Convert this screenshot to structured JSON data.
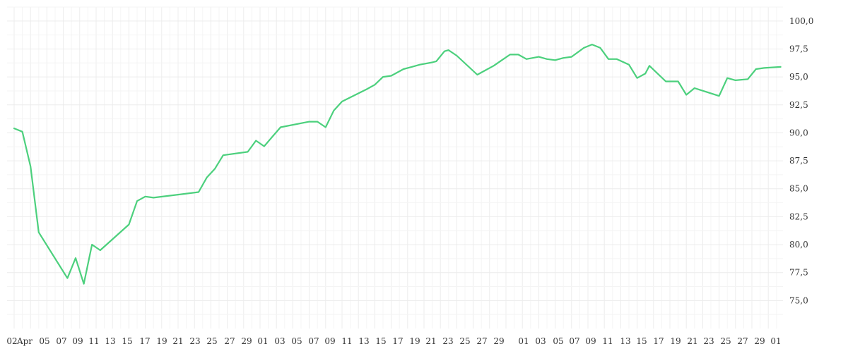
{
  "chart_data": {
    "type": "line",
    "y_axis_position": "right",
    "ylim": [
      72.5,
      101.25
    ],
    "y_ticks": [
      "100,0",
      "97,5",
      "95,0",
      "92,5",
      "90,0",
      "87,5",
      "85,0",
      "82,5",
      "80,0",
      "77,5",
      "75,0"
    ],
    "y_tick_values": [
      100,
      97.5,
      95,
      92.5,
      90,
      87.5,
      85,
      82.5,
      80,
      77.5,
      75
    ],
    "x_ticks": [
      "02",
      "Apr",
      "05",
      "07",
      "09",
      "11",
      "13",
      "15",
      "17",
      "19",
      "21",
      "23",
      "25",
      "27",
      "29",
      "01",
      "03",
      "05",
      "07",
      "09",
      "11",
      "13",
      "15",
      "17",
      "19",
      "21",
      "23",
      "25",
      "27",
      "29",
      "01",
      "03",
      "05",
      "07",
      "09",
      "11",
      "13",
      "15",
      "17",
      "19",
      "21",
      "23",
      "25",
      "27",
      "29",
      "01"
    ],
    "grid": true,
    "colors": {
      "series": "#4cd07d",
      "grid": "#ececec",
      "text": "#333333"
    },
    "series": [
      {
        "x": [
          0,
          1,
          2,
          3,
          6.5,
          7.5,
          8.5,
          9.5,
          10.5,
          14,
          15,
          16,
          17,
          22.5,
          23.5,
          24.5,
          25.5,
          28.5,
          29.5,
          30.5,
          32.5,
          36,
          37,
          38,
          39,
          40,
          43,
          44,
          45,
          46,
          47.5,
          48.5,
          49.5,
          51,
          51.5,
          52.5,
          53,
          54,
          56.5,
          57.5,
          58.5,
          59.5,
          60.5,
          61.5,
          62.5,
          64,
          65,
          66,
          67,
          68,
          69.5,
          70.5,
          71.5,
          72.5,
          73.5,
          75,
          76,
          77,
          77.5,
          79.5,
          81,
          82,
          83,
          86,
          87,
          88,
          89.5,
          90.5,
          91.5,
          93.5
        ],
        "values": [
          90.4,
          90.1,
          87.0,
          81.1,
          77.0,
          78.8,
          76.5,
          80.0,
          79.5,
          81.8,
          83.9,
          84.3,
          84.2,
          84.7,
          86.0,
          86.8,
          88.0,
          88.3,
          89.3,
          88.8,
          90.5,
          91.0,
          91.0,
          90.5,
          92.0,
          92.8,
          93.9,
          94.3,
          95.0,
          95.1,
          95.7,
          95.9,
          96.1,
          96.3,
          96.4,
          97.3,
          97.4,
          96.9,
          95.2,
          95.6,
          96.0,
          96.5,
          97.0,
          97.0,
          96.6,
          96.8,
          96.6,
          96.5,
          96.7,
          96.8,
          97.6,
          97.9,
          97.6,
          96.6,
          96.6,
          96.1,
          94.9,
          95.3,
          96.0,
          94.6,
          94.6,
          93.4,
          94.0,
          93.3,
          94.9,
          94.7,
          94.8,
          95.7,
          95.8,
          95.9
        ]
      }
    ]
  }
}
